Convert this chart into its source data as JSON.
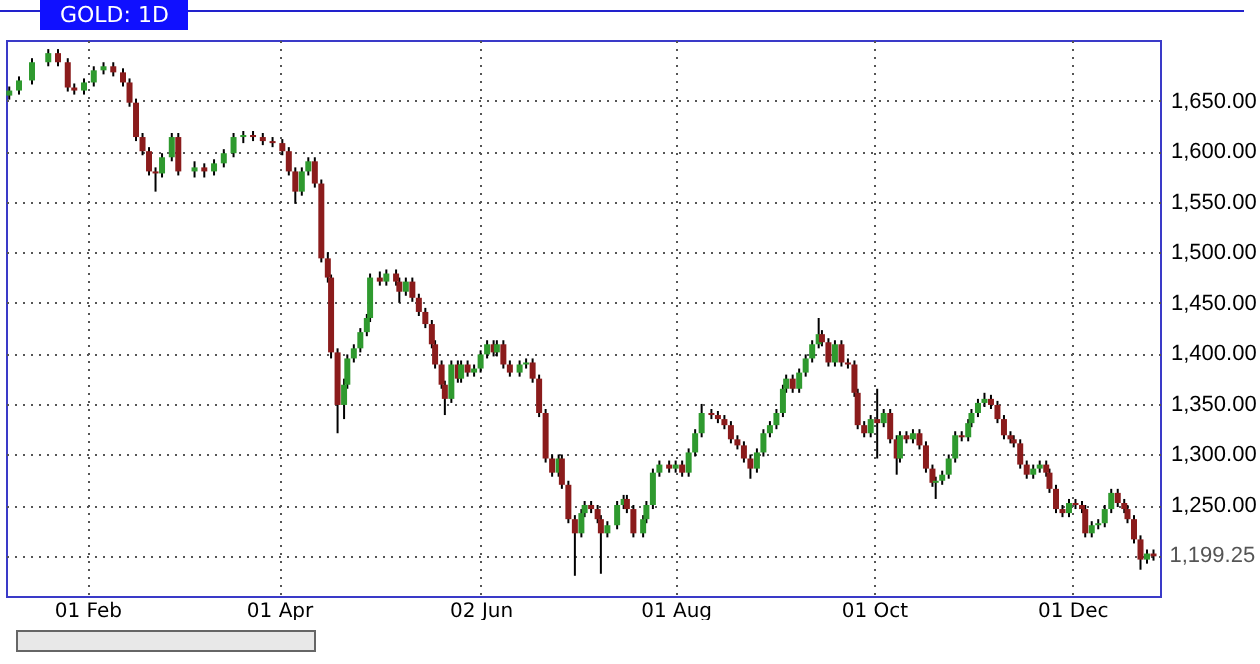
{
  "chart_data": {
    "type": "candlestick",
    "title": "GOLD: 1D",
    "x": [
      "--01-08",
      "--01-11",
      "--01-15",
      "--01-20",
      "--01-23",
      "--01-26",
      "--01-28",
      "--01-31",
      "--02-03",
      "--02-06",
      "--02-09",
      "--02-12",
      "--02-14",
      "--02-16",
      "--02-18",
      "--02-20",
      "--02-22",
      "--02-24",
      "--02-27",
      "--03-01",
      "--03-06",
      "--03-09",
      "--03-12",
      "--03-15",
      "--03-18",
      "--03-21",
      "--03-24",
      "--03-27",
      "--03-30",
      "--04-02",
      "--04-04",
      "--04-06",
      "--04-08",
      "--04-10",
      "--04-12",
      "--04-14",
      "--04-16",
      "--04-17",
      "--04-19",
      "--04-21",
      "--04-22",
      "--04-24",
      "--04-26",
      "--04-28",
      "--04-29",
      "--05-02",
      "--05-04",
      "--05-07",
      "--05-08",
      "--05-10",
      "--05-12",
      "--05-14",
      "--05-16",
      "--05-18",
      "--05-19",
      "--05-21",
      "--05-22",
      "--05-24",
      "--05-26",
      "--05-27",
      "--05-29",
      "--05-31",
      "--06-02",
      "--06-04",
      "--06-06",
      "--06-07",
      "--06-09",
      "--06-11",
      "--06-14",
      "--06-16",
      "--06-18",
      "--06-20",
      "--06-22",
      "--06-24",
      "--06-26",
      "--06-27",
      "--06-29",
      "--07-01",
      "--07-03",
      "--07-04",
      "--07-06",
      "--07-08",
      "--07-09",
      "--07-11",
      "--07-14",
      "--07-16",
      "--07-17",
      "--07-19",
      "--07-22",
      "--07-23",
      "--07-25",
      "--07-27",
      "--07-30",
      "--08-01",
      "--08-03",
      "--08-05",
      "--08-07",
      "--08-09",
      "--08-12",
      "--08-14",
      "--08-16",
      "--08-18",
      "--08-20",
      "--08-22",
      "--08-24",
      "--08-26",
      "--08-28",
      "--08-30",
      "--09-01",
      "--09-03",
      "--09-04",
      "--09-06",
      "--09-08",
      "--09-10",
      "--09-12",
      "--09-14",
      "--09-15",
      "--09-17",
      "--09-19",
      "--09-21",
      "--09-23",
      "--09-25",
      "--09-26",
      "--09-28",
      "--09-30",
      "--10-02",
      "--10-04",
      "--10-06",
      "--10-08",
      "--10-09",
      "--10-11",
      "--10-13",
      "--10-15",
      "--10-17",
      "--10-19",
      "--10-20",
      "--10-22",
      "--10-24",
      "--10-26",
      "--10-28",
      "--10-30",
      "--10-31",
      "--11-02",
      "--11-04",
      "--11-06",
      "--11-08",
      "--11-10",
      "--11-12",
      "--11-13",
      "--11-15",
      "--11-17",
      "--11-19",
      "--11-21",
      "--11-23",
      "--11-24",
      "--11-26",
      "--11-28",
      "--11-30",
      "--12-02",
      "--12-04",
      "--12-05",
      "--12-07",
      "--12-09",
      "--12-11",
      "--12-13",
      "--12-15",
      "--12-17",
      "--12-18",
      "--12-20",
      "--12-22",
      "--12-24",
      "--12-26"
    ],
    "ohlc": [
      [
        1655,
        1664,
        1651,
        1660
      ],
      [
        1660,
        1674,
        1656,
        1670
      ],
      [
        1670,
        1692,
        1666,
        1688
      ],
      [
        1688,
        1701,
        1684,
        1697
      ],
      [
        1697,
        1701,
        1684,
        1688
      ],
      [
        1688,
        1692,
        1659,
        1663
      ],
      [
        1663,
        1667,
        1656,
        1660
      ],
      [
        1660,
        1672,
        1656,
        1668
      ],
      [
        1668,
        1684,
        1664,
        1680
      ],
      [
        1680,
        1688,
        1676,
        1684
      ],
      [
        1684,
        1688,
        1674,
        1678
      ],
      [
        1678,
        1682,
        1664,
        1668
      ],
      [
        1668,
        1672,
        1644,
        1648
      ],
      [
        1648,
        1652,
        1610,
        1614
      ],
      [
        1614,
        1618,
        1596,
        1600
      ],
      [
        1600,
        1604,
        1576,
        1580
      ],
      [
        1580,
        1584,
        1560,
        1578
      ],
      [
        1578,
        1598,
        1574,
        1594
      ],
      [
        1594,
        1618,
        1590,
        1614
      ],
      [
        1614,
        1618,
        1576,
        1580
      ],
      [
        1580,
        1590,
        1574,
        1584
      ],
      [
        1584,
        1588,
        1574,
        1580
      ],
      [
        1580,
        1592,
        1576,
        1588
      ],
      [
        1588,
        1602,
        1584,
        1598
      ],
      [
        1598,
        1618,
        1594,
        1614
      ],
      [
        1614,
        1620,
        1608,
        1616
      ],
      [
        1616,
        1620,
        1610,
        1614
      ],
      [
        1614,
        1618,
        1606,
        1610
      ],
      [
        1610,
        1614,
        1604,
        1608
      ],
      [
        1608,
        1612,
        1596,
        1600
      ],
      [
        1600,
        1604,
        1576,
        1580
      ],
      [
        1580,
        1584,
        1548,
        1560
      ],
      [
        1560,
        1584,
        1556,
        1580
      ],
      [
        1580,
        1594,
        1576,
        1590
      ],
      [
        1590,
        1594,
        1564,
        1568
      ],
      [
        1568,
        1572,
        1490,
        1494
      ],
      [
        1494,
        1500,
        1470,
        1475
      ],
      [
        1475,
        1478,
        1395,
        1401
      ],
      [
        1401,
        1405,
        1321,
        1349
      ],
      [
        1349,
        1375,
        1335,
        1369
      ],
      [
        1369,
        1399,
        1365,
        1395
      ],
      [
        1395,
        1409,
        1391,
        1405
      ],
      [
        1405,
        1425,
        1401,
        1421
      ],
      [
        1421,
        1439,
        1417,
        1435
      ],
      [
        1435,
        1479,
        1431,
        1475
      ],
      [
        1475,
        1481,
        1467,
        1471
      ],
      [
        1471,
        1483,
        1467,
        1479
      ],
      [
        1479,
        1483,
        1467,
        1471
      ],
      [
        1471,
        1475,
        1450,
        1461
      ],
      [
        1461,
        1475,
        1457,
        1471
      ],
      [
        1471,
        1475,
        1451,
        1455
      ],
      [
        1455,
        1459,
        1437,
        1441
      ],
      [
        1441,
        1445,
        1425,
        1429
      ],
      [
        1429,
        1433,
        1405,
        1409
      ],
      [
        1409,
        1413,
        1385,
        1389
      ],
      [
        1389,
        1393,
        1365,
        1369
      ],
      [
        1369,
        1373,
        1339,
        1355
      ],
      [
        1355,
        1393,
        1351,
        1389
      ],
      [
        1389,
        1393,
        1371,
        1375
      ],
      [
        1375,
        1393,
        1371,
        1389
      ],
      [
        1389,
        1393,
        1377,
        1381
      ],
      [
        1381,
        1389,
        1377,
        1385
      ],
      [
        1385,
        1403,
        1381,
        1399
      ],
      [
        1399,
        1413,
        1395,
        1409
      ],
      [
        1409,
        1413,
        1397,
        1401
      ],
      [
        1401,
        1413,
        1397,
        1409
      ],
      [
        1409,
        1413,
        1385,
        1389
      ],
      [
        1389,
        1393,
        1377,
        1381
      ],
      [
        1381,
        1393,
        1377,
        1389
      ],
      [
        1389,
        1395,
        1385,
        1391
      ],
      [
        1391,
        1395,
        1371,
        1375
      ],
      [
        1375,
        1379,
        1337,
        1341
      ],
      [
        1341,
        1345,
        1292,
        1296
      ],
      [
        1296,
        1300,
        1278,
        1282
      ],
      [
        1282,
        1300,
        1278,
        1296
      ],
      [
        1296,
        1300,
        1266,
        1270
      ],
      [
        1270,
        1274,
        1232,
        1236
      ],
      [
        1236,
        1240,
        1180,
        1222
      ],
      [
        1222,
        1246,
        1218,
        1242
      ],
      [
        1242,
        1254,
        1238,
        1250
      ],
      [
        1250,
        1254,
        1242,
        1246
      ],
      [
        1246,
        1250,
        1232,
        1236
      ],
      [
        1236,
        1240,
        1182,
        1222
      ],
      [
        1222,
        1234,
        1218,
        1230
      ],
      [
        1230,
        1254,
        1226,
        1250
      ],
      [
        1250,
        1260,
        1246,
        1256
      ],
      [
        1256,
        1260,
        1242,
        1246
      ],
      [
        1246,
        1250,
        1218,
        1222
      ],
      [
        1222,
        1240,
        1218,
        1236
      ],
      [
        1236,
        1254,
        1232,
        1250
      ],
      [
        1250,
        1286,
        1246,
        1282
      ],
      [
        1282,
        1294,
        1278,
        1290
      ],
      [
        1290,
        1294,
        1282,
        1286
      ],
      [
        1286,
        1294,
        1282,
        1290
      ],
      [
        1290,
        1294,
        1278,
        1282
      ],
      [
        1282,
        1306,
        1278,
        1302
      ],
      [
        1302,
        1325,
        1298,
        1321
      ],
      [
        1321,
        1350,
        1317,
        1341
      ],
      [
        1341,
        1345,
        1335,
        1339
      ],
      [
        1339,
        1343,
        1331,
        1335
      ],
      [
        1335,
        1339,
        1325,
        1329
      ],
      [
        1329,
        1333,
        1311,
        1315
      ],
      [
        1315,
        1319,
        1305,
        1309
      ],
      [
        1309,
        1313,
        1292,
        1296
      ],
      [
        1296,
        1300,
        1276,
        1286
      ],
      [
        1286,
        1306,
        1282,
        1302
      ],
      [
        1302,
        1325,
        1298,
        1321
      ],
      [
        1321,
        1333,
        1317,
        1329
      ],
      [
        1329,
        1345,
        1325,
        1341
      ],
      [
        1341,
        1369,
        1337,
        1365
      ],
      [
        1365,
        1379,
        1361,
        1375
      ],
      [
        1375,
        1379,
        1361,
        1365
      ],
      [
        1365,
        1385,
        1361,
        1381
      ],
      [
        1381,
        1399,
        1377,
        1395
      ],
      [
        1395,
        1413,
        1391,
        1409
      ],
      [
        1409,
        1435,
        1405,
        1419
      ],
      [
        1419,
        1423,
        1407,
        1411
      ],
      [
        1411,
        1415,
        1387,
        1391
      ],
      [
        1391,
        1413,
        1387,
        1409
      ],
      [
        1409,
        1413,
        1387,
        1391
      ],
      [
        1391,
        1395,
        1385,
        1389
      ],
      [
        1389,
        1393,
        1357,
        1361
      ],
      [
        1361,
        1365,
        1325,
        1329
      ],
      [
        1329,
        1333,
        1317,
        1321
      ],
      [
        1321,
        1339,
        1317,
        1335
      ],
      [
        1335,
        1365,
        1296,
        1331
      ],
      [
        1331,
        1345,
        1327,
        1341
      ],
      [
        1341,
        1345,
        1311,
        1315
      ],
      [
        1315,
        1319,
        1280,
        1296
      ],
      [
        1296,
        1323,
        1292,
        1319
      ],
      [
        1319,
        1323,
        1311,
        1315
      ],
      [
        1315,
        1325,
        1311,
        1321
      ],
      [
        1321,
        1325,
        1305,
        1309
      ],
      [
        1309,
        1313,
        1282,
        1286
      ],
      [
        1286,
        1290,
        1268,
        1272
      ],
      [
        1272,
        1278,
        1256,
        1274
      ],
      [
        1274,
        1284,
        1270,
        1280
      ],
      [
        1280,
        1300,
        1276,
        1296
      ],
      [
        1296,
        1323,
        1292,
        1319
      ],
      [
        1319,
        1323,
        1313,
        1317
      ],
      [
        1317,
        1335,
        1313,
        1331
      ],
      [
        1331,
        1345,
        1327,
        1341
      ],
      [
        1341,
        1355,
        1337,
        1351
      ],
      [
        1351,
        1361,
        1347,
        1355
      ],
      [
        1355,
        1359,
        1345,
        1349
      ],
      [
        1349,
        1353,
        1331,
        1335
      ],
      [
        1335,
        1339,
        1315,
        1319
      ],
      [
        1319,
        1323,
        1311,
        1315
      ],
      [
        1315,
        1319,
        1307,
        1311
      ],
      [
        1311,
        1315,
        1286,
        1290
      ],
      [
        1290,
        1294,
        1276,
        1280
      ],
      [
        1280,
        1290,
        1276,
        1286
      ],
      [
        1286,
        1294,
        1282,
        1290
      ],
      [
        1290,
        1294,
        1278,
        1282
      ],
      [
        1282,
        1286,
        1262,
        1266
      ],
      [
        1266,
        1270,
        1242,
        1246
      ],
      [
        1246,
        1250,
        1238,
        1242
      ],
      [
        1242,
        1256,
        1238,
        1252
      ],
      [
        1252,
        1256,
        1246,
        1250
      ],
      [
        1250,
        1254,
        1242,
        1246
      ],
      [
        1246,
        1250,
        1218,
        1222
      ],
      [
        1222,
        1234,
        1218,
        1230
      ],
      [
        1230,
        1236,
        1226,
        1232
      ],
      [
        1232,
        1250,
        1228,
        1246
      ],
      [
        1246,
        1266,
        1242,
        1262
      ],
      [
        1262,
        1266,
        1248,
        1252
      ],
      [
        1252,
        1256,
        1242,
        1246
      ],
      [
        1246,
        1250,
        1232,
        1236
      ],
      [
        1236,
        1240,
        1212,
        1216
      ],
      [
        1216,
        1220,
        1186,
        1196
      ],
      [
        1196,
        1206,
        1192,
        1202
      ],
      [
        1202,
        1206,
        1195,
        1199.25
      ]
    ],
    "xlim": [
      "--01-07",
      "--12-28"
    ],
    "xticks": [
      {
        "value": "--02-01",
        "label": "01 Feb"
      },
      {
        "value": "--04-01",
        "label": "01 Apr"
      },
      {
        "value": "--06-02",
        "label": "02 Jun"
      },
      {
        "value": "--08-01",
        "label": "01 Aug"
      },
      {
        "value": "--10-01",
        "label": "01 Oct"
      },
      {
        "value": "--12-01",
        "label": "01 Dec"
      }
    ],
    "ylim": [
      1160,
      1710
    ],
    "yticks": [
      {
        "value": 1200,
        "label": null
      },
      {
        "value": 1250,
        "label": "1,250.00"
      },
      {
        "value": 1300,
        "label": "1,300.00"
      },
      {
        "value": 1350,
        "label": "1,350.00"
      },
      {
        "value": 1400,
        "label": "1,400.00"
      },
      {
        "value": 1450,
        "label": "1,450.00"
      },
      {
        "value": 1500,
        "label": "1,500.00"
      },
      {
        "value": 1550,
        "label": "1,550.00"
      },
      {
        "value": 1600,
        "label": "1,600.00"
      },
      {
        "value": 1650,
        "label": "1,650.00"
      }
    ],
    "grid": true,
    "annotations": [
      {
        "text": "1,199.25",
        "x": "--12-26",
        "y": 1199.25
      }
    ]
  }
}
